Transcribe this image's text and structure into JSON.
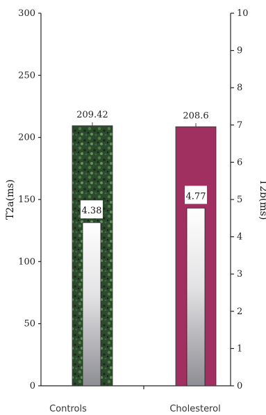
{
  "chart_data": {
    "type": "bar",
    "categories": [
      "Controls",
      "Cholesterol"
    ],
    "series": [
      {
        "axis": "left",
        "values": [
          209.42,
          208.6
        ],
        "labels": [
          "209.42",
          "208.6"
        ],
        "colors": [
          "#2e5630",
          "#a03060"
        ]
      },
      {
        "axis": "right",
        "values": [
          4.38,
          4.77
        ],
        "labels": [
          "4.38",
          "4.77"
        ],
        "colors": [
          "#ffffff",
          "#ffffff"
        ]
      }
    ],
    "y_left": {
      "label": "T2a(ms)",
      "ylim": [
        0,
        300
      ],
      "ticks": [
        "0",
        "50",
        "100",
        "150",
        "200",
        "250",
        "300"
      ]
    },
    "y_right": {
      "label": "T2b(ms)",
      "ylim": [
        0,
        10
      ],
      "ticks": [
        "0",
        "1",
        "2",
        "3",
        "4",
        "5",
        "6",
        "7",
        "8",
        "9",
        "10"
      ]
    },
    "grid": false
  }
}
